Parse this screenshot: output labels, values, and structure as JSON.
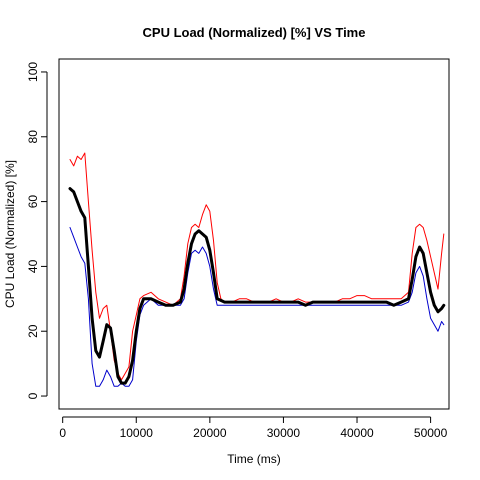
{
  "chart_data": {
    "type": "line",
    "title": "CPU Load (Normalized) [%]  VS  Time",
    "xlabel": "Time (ms)",
    "ylabel": "CPU Load (Normalized) [%]",
    "xlim": [
      -500,
      52500
    ],
    "ylim": [
      -4,
      104
    ],
    "xticks": [
      0,
      10000,
      20000,
      30000,
      40000,
      50000
    ],
    "xtick_labels": [
      "0",
      "10000",
      "20000",
      "30000",
      "40000",
      "50000"
    ],
    "yticks": [
      0,
      20,
      40,
      60,
      80,
      100
    ],
    "ytick_labels": [
      "0",
      "20",
      "40",
      "60",
      "80",
      "100"
    ],
    "grid": false,
    "legend": "none",
    "series": [
      {
        "color": "#ff0000",
        "width": 1,
        "points": [
          [
            1000,
            73
          ],
          [
            1500,
            71
          ],
          [
            2000,
            74
          ],
          [
            2500,
            73
          ],
          [
            3000,
            75
          ],
          [
            3500,
            60
          ],
          [
            4000,
            45
          ],
          [
            4500,
            32
          ],
          [
            5000,
            24
          ],
          [
            5500,
            27
          ],
          [
            6000,
            28
          ],
          [
            6500,
            20
          ],
          [
            7000,
            11
          ],
          [
            7500,
            7
          ],
          [
            8000,
            5
          ],
          [
            8500,
            7
          ],
          [
            9000,
            9
          ],
          [
            9500,
            20
          ],
          [
            10000,
            25
          ],
          [
            10500,
            30
          ],
          [
            11000,
            31
          ],
          [
            12000,
            32
          ],
          [
            13000,
            30
          ],
          [
            14000,
            29
          ],
          [
            15000,
            28
          ],
          [
            16000,
            30
          ],
          [
            16500,
            37
          ],
          [
            17000,
            47
          ],
          [
            17500,
            52
          ],
          [
            18000,
            53
          ],
          [
            18500,
            52
          ],
          [
            19000,
            56
          ],
          [
            19500,
            59
          ],
          [
            20000,
            57
          ],
          [
            20500,
            48
          ],
          [
            21000,
            35
          ],
          [
            21500,
            30
          ],
          [
            22000,
            29
          ],
          [
            23000,
            29
          ],
          [
            24000,
            30
          ],
          [
            25000,
            30
          ],
          [
            26000,
            29
          ],
          [
            27000,
            29
          ],
          [
            28000,
            29
          ],
          [
            29000,
            30
          ],
          [
            30000,
            29
          ],
          [
            31000,
            29
          ],
          [
            32000,
            30
          ],
          [
            33000,
            29
          ],
          [
            34000,
            29
          ],
          [
            35000,
            29
          ],
          [
            36000,
            29
          ],
          [
            37000,
            29
          ],
          [
            38000,
            30
          ],
          [
            39000,
            30
          ],
          [
            40000,
            31
          ],
          [
            41000,
            31
          ],
          [
            42000,
            30
          ],
          [
            43000,
            30
          ],
          [
            44000,
            30
          ],
          [
            45000,
            30
          ],
          [
            46000,
            30
          ],
          [
            47000,
            32
          ],
          [
            47500,
            44
          ],
          [
            48000,
            52
          ],
          [
            48500,
            53
          ],
          [
            49000,
            52
          ],
          [
            49500,
            48
          ],
          [
            50000,
            43
          ],
          [
            50500,
            38
          ],
          [
            51000,
            33
          ],
          [
            51500,
            44
          ],
          [
            51800,
            50
          ]
        ]
      },
      {
        "color": "#0000cc",
        "width": 1,
        "points": [
          [
            1000,
            52
          ],
          [
            1500,
            49
          ],
          [
            2000,
            46
          ],
          [
            2500,
            43
          ],
          [
            3000,
            41
          ],
          [
            3500,
            30
          ],
          [
            4000,
            10
          ],
          [
            4500,
            3
          ],
          [
            5000,
            3
          ],
          [
            5500,
            5
          ],
          [
            6000,
            8
          ],
          [
            6500,
            6
          ],
          [
            7000,
            3
          ],
          [
            7500,
            3
          ],
          [
            8000,
            4
          ],
          [
            8500,
            3
          ],
          [
            9000,
            3
          ],
          [
            9500,
            5
          ],
          [
            10000,
            17
          ],
          [
            10500,
            25
          ],
          [
            11000,
            28
          ],
          [
            12000,
            30
          ],
          [
            13000,
            28
          ],
          [
            14000,
            28
          ],
          [
            15000,
            28
          ],
          [
            16000,
            28
          ],
          [
            16500,
            30
          ],
          [
            17000,
            38
          ],
          [
            17500,
            44
          ],
          [
            18000,
            45
          ],
          [
            18500,
            44
          ],
          [
            19000,
            46
          ],
          [
            19500,
            44
          ],
          [
            20000,
            40
          ],
          [
            20500,
            33
          ],
          [
            21000,
            28
          ],
          [
            22000,
            28
          ],
          [
            23000,
            28
          ],
          [
            24000,
            28
          ],
          [
            25000,
            28
          ],
          [
            26000,
            28
          ],
          [
            27000,
            28
          ],
          [
            28000,
            28
          ],
          [
            29000,
            28
          ],
          [
            30000,
            28
          ],
          [
            31000,
            28
          ],
          [
            32000,
            28
          ],
          [
            33000,
            28
          ],
          [
            34000,
            28
          ],
          [
            35000,
            28
          ],
          [
            36000,
            28
          ],
          [
            37000,
            28
          ],
          [
            38000,
            28
          ],
          [
            39000,
            28
          ],
          [
            40000,
            28
          ],
          [
            41000,
            28
          ],
          [
            42000,
            28
          ],
          [
            43000,
            28
          ],
          [
            44000,
            28
          ],
          [
            45000,
            28
          ],
          [
            46000,
            28
          ],
          [
            47000,
            29
          ],
          [
            47500,
            32
          ],
          [
            48000,
            38
          ],
          [
            48500,
            40
          ],
          [
            49000,
            37
          ],
          [
            49500,
            30
          ],
          [
            50000,
            24
          ],
          [
            50500,
            22
          ],
          [
            51000,
            20
          ],
          [
            51500,
            23
          ],
          [
            51800,
            22
          ]
        ]
      },
      {
        "color": "#000000",
        "width": 3,
        "points": [
          [
            1000,
            64
          ],
          [
            1500,
            63
          ],
          [
            2000,
            60
          ],
          [
            2500,
            57
          ],
          [
            3000,
            55
          ],
          [
            3500,
            40
          ],
          [
            4000,
            24
          ],
          [
            4500,
            14
          ],
          [
            5000,
            12
          ],
          [
            5500,
            17
          ],
          [
            6000,
            22
          ],
          [
            6500,
            21
          ],
          [
            7000,
            14
          ],
          [
            7500,
            6
          ],
          [
            8000,
            4
          ],
          [
            8500,
            4
          ],
          [
            9000,
            6
          ],
          [
            9500,
            11
          ],
          [
            10000,
            20
          ],
          [
            10500,
            27
          ],
          [
            11000,
            30
          ],
          [
            12000,
            30
          ],
          [
            13000,
            29
          ],
          [
            14000,
            28
          ],
          [
            15000,
            28
          ],
          [
            16000,
            29
          ],
          [
            16500,
            33
          ],
          [
            17000,
            41
          ],
          [
            17500,
            47
          ],
          [
            18000,
            50
          ],
          [
            18500,
            51
          ],
          [
            19000,
            50
          ],
          [
            19500,
            49
          ],
          [
            20000,
            45
          ],
          [
            20500,
            38
          ],
          [
            21000,
            30
          ],
          [
            22000,
            29
          ],
          [
            23000,
            29
          ],
          [
            24000,
            29
          ],
          [
            25000,
            29
          ],
          [
            26000,
            29
          ],
          [
            27000,
            29
          ],
          [
            28000,
            29
          ],
          [
            29000,
            29
          ],
          [
            30000,
            29
          ],
          [
            31000,
            29
          ],
          [
            32000,
            29
          ],
          [
            33000,
            28
          ],
          [
            34000,
            29
          ],
          [
            35000,
            29
          ],
          [
            36000,
            29
          ],
          [
            37000,
            29
          ],
          [
            38000,
            29
          ],
          [
            39000,
            29
          ],
          [
            40000,
            29
          ],
          [
            41000,
            29
          ],
          [
            42000,
            29
          ],
          [
            43000,
            29
          ],
          [
            44000,
            29
          ],
          [
            45000,
            28
          ],
          [
            46000,
            29
          ],
          [
            47000,
            30
          ],
          [
            47500,
            36
          ],
          [
            48000,
            43
          ],
          [
            48500,
            46
          ],
          [
            49000,
            44
          ],
          [
            49500,
            38
          ],
          [
            50000,
            32
          ],
          [
            50500,
            28
          ],
          [
            51000,
            26
          ],
          [
            51500,
            27
          ],
          [
            51800,
            28
          ]
        ]
      }
    ]
  }
}
